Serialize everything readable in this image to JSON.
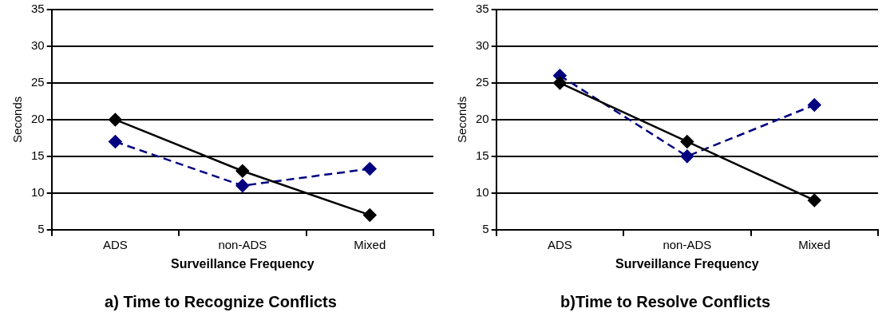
{
  "chart_data": [
    {
      "type": "line",
      "title": "a) Time to Recognize Conflicts",
      "xlabel": "Surveillance Frequency",
      "ylabel": "Seconds",
      "categories": [
        "ADS",
        "non-ADS",
        "Mixed"
      ],
      "series": [
        {
          "color": "#000000",
          "values": [
            20,
            13,
            7
          ],
          "line_style": "solid"
        },
        {
          "color": "#000080",
          "values": [
            17,
            11,
            13.3
          ],
          "line_style": "dashed"
        }
      ],
      "ylim": [
        5,
        35
      ],
      "yticks": [
        5,
        10,
        15,
        20,
        25,
        30,
        35
      ],
      "grid": "y",
      "legend": false,
      "marker": "diamond"
    },
    {
      "type": "line",
      "title": "b)Time to Resolve Conflicts",
      "xlabel": "Surveillance Frequency",
      "ylabel": "Seconds",
      "categories": [
        "ADS",
        "non-ADS",
        "Mixed"
      ],
      "series": [
        {
          "color": "#000000",
          "values": [
            25,
            17,
            9
          ],
          "line_style": "solid"
        },
        {
          "color": "#000080",
          "values": [
            26,
            15,
            22
          ],
          "line_style": "dashed"
        }
      ],
      "ylim": [
        5,
        35
      ],
      "yticks": [
        5,
        10,
        15,
        20,
        25,
        30,
        35
      ],
      "grid": "y",
      "legend": false,
      "marker": "diamond"
    }
  ]
}
